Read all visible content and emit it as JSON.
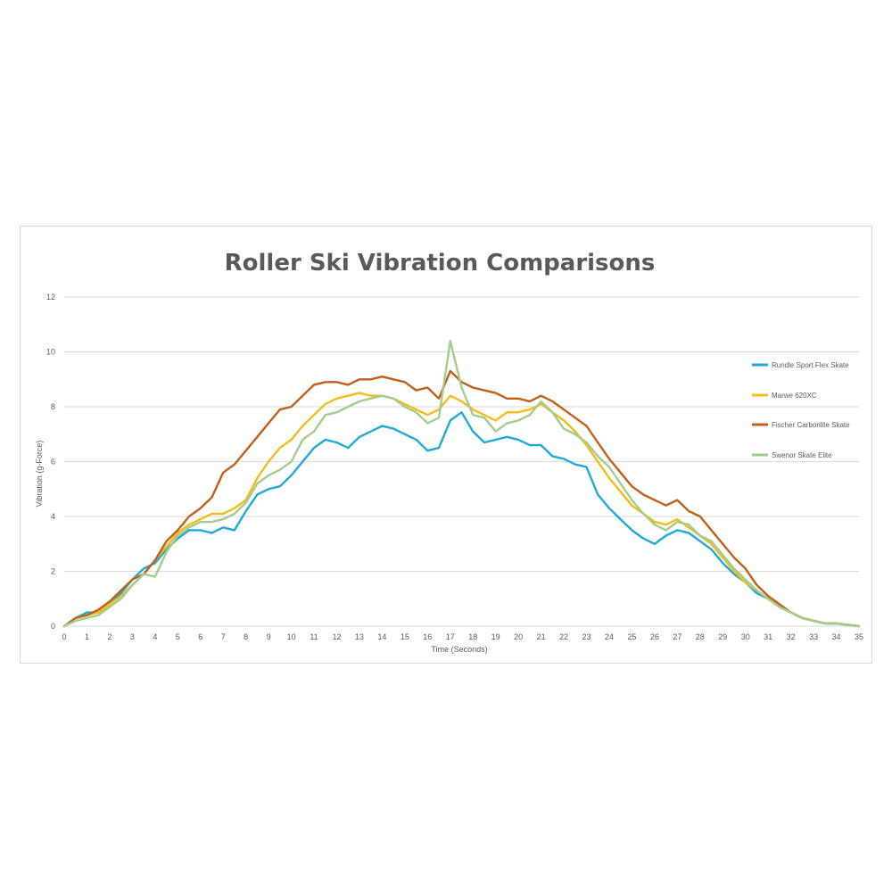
{
  "chart_data": {
    "type": "line",
    "title": "Roller Ski Vibration Comparisons",
    "xlabel": "Time (Seconds)",
    "ylabel": "Vibration (g-Force)",
    "xlim": [
      0,
      35
    ],
    "ylim": [
      0,
      12
    ],
    "x_ticks": [
      "0",
      "1",
      "2",
      "3",
      "4",
      "5",
      "6",
      "7",
      "8",
      "9",
      "10",
      "11",
      "12",
      "13",
      "14",
      "15",
      "16",
      "17",
      "18",
      "19",
      "20",
      "21",
      "22",
      "23",
      "24",
      "25",
      "26",
      "27",
      "28",
      "29",
      "30",
      "31",
      "32",
      "33",
      "34",
      "35"
    ],
    "y_ticks": [
      "0",
      "2",
      "4",
      "6",
      "8",
      "10",
      "12"
    ],
    "grid": "horizontal",
    "legend_position": "right",
    "x": [
      0,
      0.5,
      1,
      1.5,
      2,
      2.5,
      3,
      3.5,
      4,
      4.5,
      5,
      5.5,
      6,
      6.5,
      7,
      7.5,
      8,
      8.5,
      9,
      9.5,
      10,
      10.5,
      11,
      11.5,
      12,
      12.5,
      13,
      13.5,
      14,
      14.5,
      15,
      15.5,
      16,
      16.5,
      17,
      17.5,
      18,
      18.5,
      19,
      19.5,
      20,
      20.5,
      21,
      21.5,
      22,
      22.5,
      23,
      23.5,
      24,
      24.5,
      25,
      25.5,
      26,
      26.5,
      27,
      27.5,
      28,
      28.5,
      29,
      29.5,
      30,
      30.5,
      31,
      31.5,
      32,
      32.5,
      33,
      33.5,
      34,
      34.5,
      35
    ],
    "series": [
      {
        "name": "Rundle Sport Flex Skate",
        "color": "#1fa9d9",
        "values": [
          0,
          0.3,
          0.5,
          0.5,
          0.8,
          1.2,
          1.7,
          2.1,
          2.3,
          2.8,
          3.2,
          3.5,
          3.5,
          3.4,
          3.6,
          3.5,
          4.2,
          4.8,
          5.0,
          5.1,
          5.5,
          6.0,
          6.5,
          6.8,
          6.7,
          6.5,
          6.9,
          7.1,
          7.3,
          7.2,
          7.0,
          6.8,
          6.4,
          6.5,
          7.5,
          7.8,
          7.1,
          6.7,
          6.8,
          6.9,
          6.8,
          6.6,
          6.6,
          6.2,
          6.1,
          5.9,
          5.8,
          4.8,
          4.3,
          3.9,
          3.5,
          3.2,
          3.0,
          3.3,
          3.5,
          3.4,
          3.1,
          2.8,
          2.3,
          1.9,
          1.6,
          1.2,
          1.0,
          0.7,
          0.5,
          0.3,
          0.2,
          0.1,
          0.1,
          0.05,
          0
        ]
      },
      {
        "name": "Marwe 620XC",
        "color": "#f2bc1a",
        "values": [
          0,
          0.3,
          0.4,
          0.5,
          0.8,
          1.1,
          1.5,
          1.9,
          2.4,
          2.9,
          3.4,
          3.7,
          3.9,
          4.1,
          4.1,
          4.3,
          4.6,
          5.4,
          6.0,
          6.5,
          6.8,
          7.3,
          7.7,
          8.1,
          8.3,
          8.4,
          8.5,
          8.4,
          8.4,
          8.3,
          8.1,
          7.9,
          7.7,
          7.9,
          8.4,
          8.2,
          7.9,
          7.7,
          7.5,
          7.8,
          7.8,
          7.9,
          8.1,
          7.8,
          7.5,
          7.1,
          6.6,
          6.0,
          5.4,
          4.9,
          4.4,
          4.1,
          3.8,
          3.7,
          3.9,
          3.6,
          3.3,
          3.0,
          2.5,
          2.0,
          1.6,
          1.3,
          1.0,
          0.7,
          0.5,
          0.3,
          0.2,
          0.1,
          0.1,
          0.05,
          0
        ]
      },
      {
        "name": "Fischer Carbonlite Skate",
        "color": "#c0601b",
        "values": [
          0,
          0.3,
          0.4,
          0.6,
          0.9,
          1.3,
          1.7,
          1.9,
          2.4,
          3.1,
          3.5,
          4.0,
          4.3,
          4.7,
          5.6,
          5.9,
          6.4,
          6.9,
          7.4,
          7.9,
          8.0,
          8.4,
          8.8,
          8.9,
          8.9,
          8.8,
          9.0,
          9.0,
          9.1,
          9.0,
          8.9,
          8.6,
          8.7,
          8.3,
          9.3,
          8.9,
          8.7,
          8.6,
          8.5,
          8.3,
          8.3,
          8.2,
          8.4,
          8.2,
          7.9,
          7.6,
          7.3,
          6.7,
          6.1,
          5.6,
          5.1,
          4.8,
          4.6,
          4.4,
          4.6,
          4.2,
          4.0,
          3.5,
          3.0,
          2.5,
          2.1,
          1.5,
          1.1,
          0.8,
          0.5,
          0.3,
          0.2,
          0.1,
          0.1,
          0.05,
          0
        ]
      },
      {
        "name": "Swenor Skate Elite",
        "color": "#a3cd8e",
        "values": [
          0,
          0.2,
          0.3,
          0.4,
          0.7,
          1.0,
          1.5,
          1.9,
          1.8,
          2.7,
          3.3,
          3.6,
          3.8,
          3.8,
          3.9,
          4.1,
          4.5,
          5.2,
          5.5,
          5.7,
          6.0,
          6.8,
          7.1,
          7.7,
          7.8,
          8.0,
          8.2,
          8.3,
          8.4,
          8.3,
          8.0,
          7.8,
          7.4,
          7.6,
          10.4,
          8.7,
          7.7,
          7.6,
          7.1,
          7.4,
          7.5,
          7.7,
          8.2,
          7.8,
          7.2,
          7.0,
          6.7,
          6.2,
          5.8,
          5.2,
          4.6,
          4.1,
          3.7,
          3.5,
          3.8,
          3.7,
          3.3,
          3.1,
          2.6,
          2.1,
          1.7,
          1.3,
          1.0,
          0.7,
          0.5,
          0.3,
          0.2,
          0.1,
          0.1,
          0.05,
          0
        ]
      }
    ]
  }
}
